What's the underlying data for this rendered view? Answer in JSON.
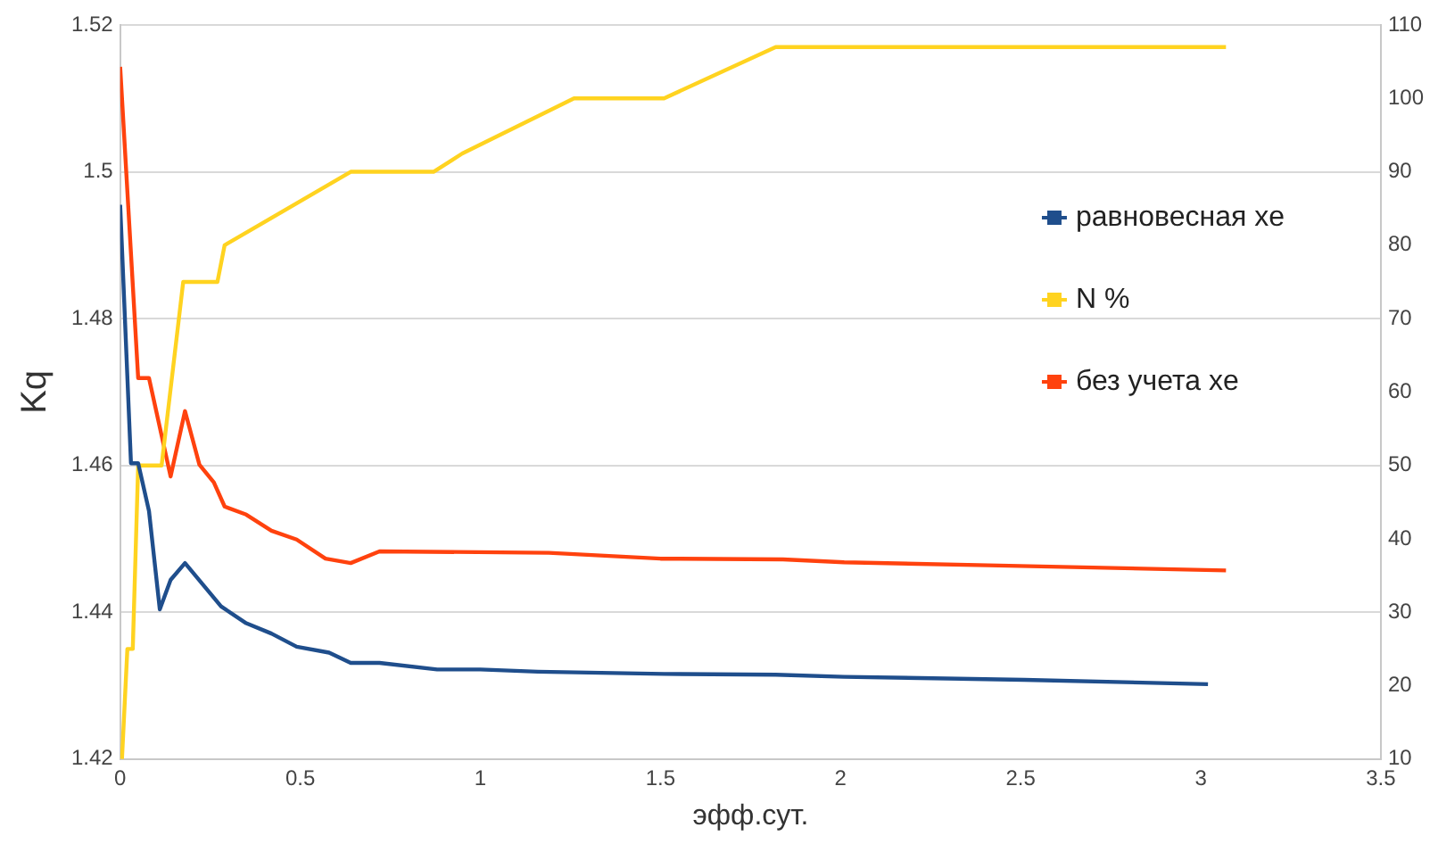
{
  "chart_data": {
    "type": "line",
    "xlabel": "эфф.сут.",
    "ylabel": "Kq",
    "xlim": [
      0,
      3.5
    ],
    "xticks": [
      0,
      0.5,
      1,
      1.5,
      2,
      2.5,
      3,
      3.5
    ],
    "ylim": [
      1.42,
      1.52
    ],
    "yticks": [
      1.42,
      1.44,
      1.46,
      1.48,
      1.5,
      1.52
    ],
    "y2lim": [
      10,
      110
    ],
    "y2ticks": [
      10,
      20,
      30,
      40,
      50,
      60,
      70,
      80,
      90,
      100,
      110
    ],
    "grid": "y",
    "legend": "right",
    "series": [
      {
        "name": "равновесная xe",
        "color": "#1f4e8c",
        "x": [
          0,
          0.03,
          0.05,
          0.08,
          0.11,
          0.14,
          0.18,
          0.28,
          0.35,
          0.42,
          0.49,
          0.58,
          0.64,
          0.72,
          0.88,
          1.0,
          1.16,
          1.51,
          1.82,
          2.01,
          2.51,
          3.02
        ],
        "values": [
          1.4955,
          1.4603,
          1.4603,
          1.4538,
          1.4404,
          1.4444,
          1.4467,
          1.4408,
          1.4385,
          1.4371,
          1.4353,
          1.4345,
          1.4331,
          1.4331,
          1.4322,
          1.4322,
          1.4319,
          1.4316,
          1.4315,
          1.4312,
          1.4308,
          1.4302
        ]
      },
      {
        "name": "N %",
        "color": "#ffd320",
        "axis": "y2",
        "x": [
          0.005,
          0.02,
          0.035,
          0.05,
          0.115,
          0.175,
          0.27,
          0.29,
          0.64,
          0.87,
          0.95,
          1.26,
          1.51,
          1.82,
          3.07
        ],
        "values": [
          10,
          25,
          25,
          50,
          50,
          75,
          75,
          80,
          90,
          90,
          92.5,
          100,
          100,
          107,
          107
        ]
      },
      {
        "name": "без учета xe",
        "color": "#ff420e",
        "x": [
          0,
          0.05,
          0.08,
          0.14,
          0.18,
          0.22,
          0.26,
          0.29,
          0.35,
          0.42,
          0.49,
          0.57,
          0.64,
          0.72,
          1.19,
          1.5,
          1.84,
          2.01,
          2.41,
          3.07
        ],
        "values": [
          1.5143,
          1.4719,
          1.4719,
          1.4585,
          1.4674,
          1.4601,
          1.4577,
          1.4544,
          1.4533,
          1.4511,
          1.4499,
          1.4473,
          1.4467,
          1.4483,
          1.4481,
          1.4473,
          1.4472,
          1.4468,
          1.4464,
          1.4457
        ]
      }
    ]
  }
}
